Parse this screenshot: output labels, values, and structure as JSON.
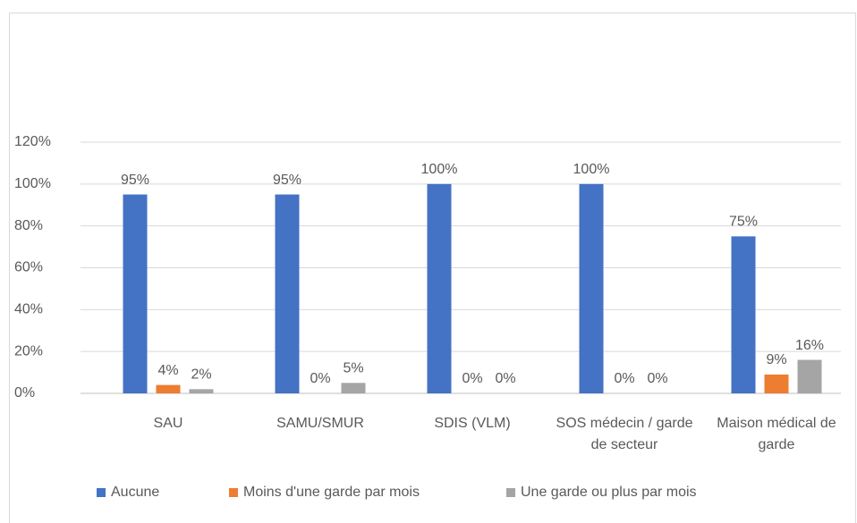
{
  "chart_data": {
    "type": "bar",
    "categories": [
      "SAU",
      "SAMU/SMUR",
      "SDIS (VLM)",
      "SOS médecin / garde de secteur",
      "Maison médical de garde"
    ],
    "series": [
      {
        "name": "Aucune",
        "color": "#4472c4",
        "values": [
          95,
          95,
          100,
          100,
          75
        ],
        "value_labels": [
          "95%",
          "95%",
          "100%",
          "100%",
          "75%"
        ]
      },
      {
        "name": "Moins d'une garde par mois",
        "color": "#ed7d31",
        "values": [
          4,
          0,
          0,
          0,
          9
        ],
        "value_labels": [
          "4%",
          "0%",
          "0%",
          "0%",
          "9%"
        ]
      },
      {
        "name": "Une garde ou plus par mois",
        "color": "#a5a5a5",
        "values": [
          2,
          5,
          0,
          0,
          16
        ],
        "value_labels": [
          "2%",
          "5%",
          "0%",
          "0%",
          "16%"
        ]
      }
    ],
    "ylim": [
      0,
      120
    ],
    "yticks": [
      {
        "value": 0,
        "label": "0%"
      },
      {
        "value": 20,
        "label": "20%"
      },
      {
        "value": 40,
        "label": "40%"
      },
      {
        "value": 60,
        "label": "60%"
      },
      {
        "value": 80,
        "label": "80%"
      },
      {
        "value": 100,
        "label": "100%"
      },
      {
        "value": 120,
        "label": "120%"
      }
    ],
    "grid": true,
    "legend": "bottom"
  }
}
